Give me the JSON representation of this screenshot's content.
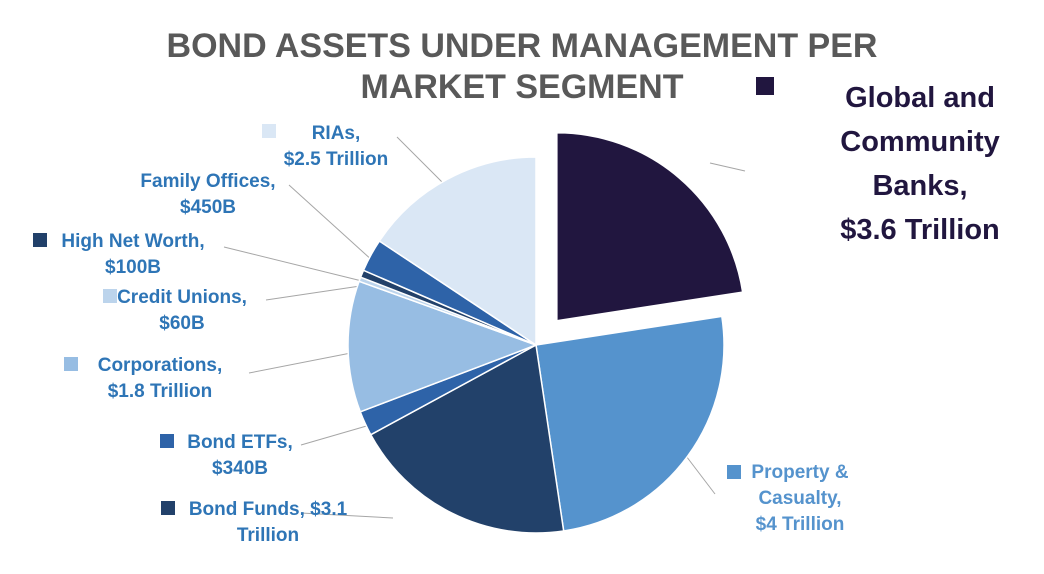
{
  "chart_data": {
    "type": "pie",
    "title_lines": [
      "BOND ASSETS UNDER MANAGEMENT PER",
      "MARKET SEGMENT"
    ],
    "unit": "Trillion USD",
    "label_color": "#2e75b6",
    "slices": [
      {
        "name": "Global and Community Banks",
        "value": 3.6,
        "color": "#21163f",
        "label_lines": [
          "Global and",
          "Community",
          "Banks,",
          "$3.6 Trillion"
        ],
        "label_color": "#21163f",
        "exploded": true
      },
      {
        "name": "Property & Casualty",
        "value": 4.0,
        "color": "#5593cd",
        "label_lines": [
          "Property &",
          "Casualty,",
          "$4 Trillion"
        ],
        "label_color": "#5593cd"
      },
      {
        "name": "Bond Funds",
        "value": 3.1,
        "color": "#22416a",
        "label_lines": [
          "Bond Funds, $3.1",
          "Trillion"
        ]
      },
      {
        "name": "Bond ETFs",
        "value": 0.34,
        "color": "#2e63a8",
        "label_lines": [
          "Bond ETFs,",
          "$340B"
        ]
      },
      {
        "name": "Corporations",
        "value": 1.8,
        "color": "#97bde3",
        "label_lines": [
          "Corporations,",
          "$1.8 Trillion"
        ]
      },
      {
        "name": "Credit Unions",
        "value": 0.06,
        "color": "#bcd4ec",
        "label_lines": [
          "Credit Unions,",
          "$60B"
        ]
      },
      {
        "name": "High Net Worth",
        "value": 0.1,
        "color": "#22416a",
        "label_lines": [
          "High Net Worth,",
          "$100B"
        ]
      },
      {
        "name": "Family Offices",
        "value": 0.45,
        "color": "#2e63a8",
        "label_lines": [
          "Family Offices,",
          "$450B"
        ]
      },
      {
        "name": "RIAs",
        "value": 2.5,
        "color": "#dae7f5",
        "label_lines": [
          "RIAs,",
          "$2.5 Trillion"
        ]
      }
    ],
    "start_angle_deg": 0,
    "direction": "clockwise",
    "legend": "none"
  }
}
